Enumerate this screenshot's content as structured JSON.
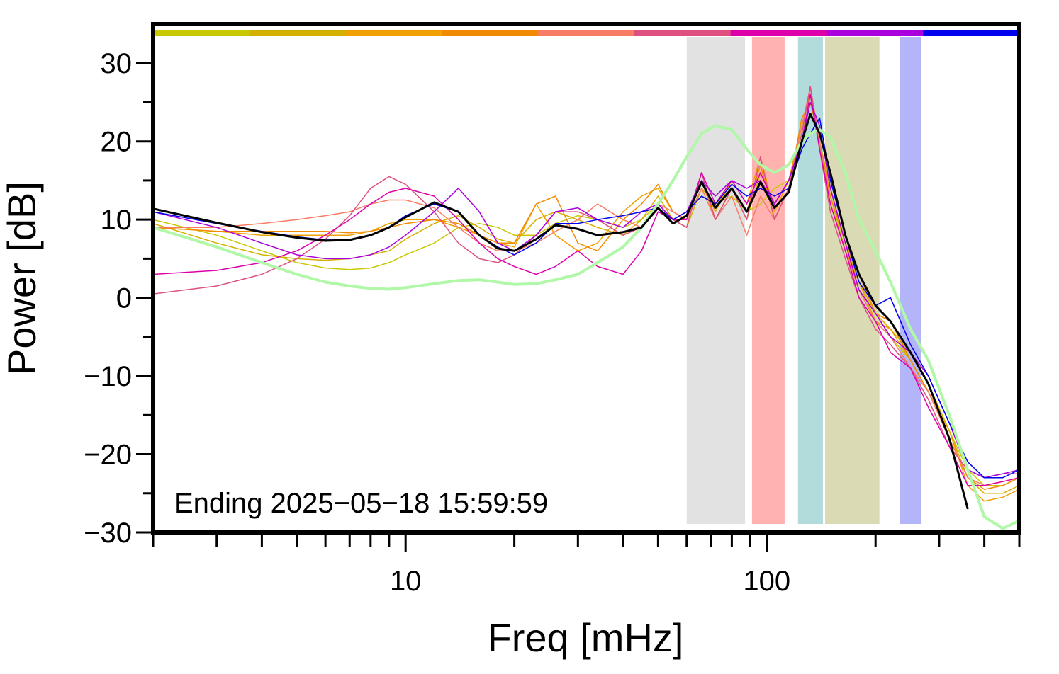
{
  "chart_data": {
    "type": "line",
    "xlabel": "Freq [mHz]",
    "ylabel": "Power [dB]",
    "annotation": "Ending 2025−05−18 15:59:59",
    "log_x": true,
    "xlim": [
      2,
      500
    ],
    "ylim": [
      -30,
      35
    ],
    "xticks": [
      10,
      100
    ],
    "xminor_ticks": [
      2,
      3,
      4,
      5,
      6,
      7,
      8,
      9,
      20,
      30,
      40,
      50,
      60,
      70,
      80,
      90,
      200,
      300,
      400,
      500
    ],
    "yticks": [
      {
        "value": -30,
        "label": "−30"
      },
      {
        "value": -20,
        "label": "−20"
      },
      {
        "value": -10,
        "label": "−10"
      },
      0,
      10,
      20,
      30
    ],
    "yminor_ticks": [
      -25,
      -15,
      -5,
      5,
      15,
      25
    ],
    "colorbar": [
      "#c8c800",
      "#d4b000",
      "#f0a000",
      "#f28a00",
      "#f87c64",
      "#dd5080",
      "#dd00aa",
      "#aa00dd",
      "#0000ee"
    ],
    "bands": [
      {
        "x": [
          60,
          87
        ],
        "color": "#e2e2e2"
      },
      {
        "x": [
          91,
          112
        ],
        "color": "#ffb2b0"
      },
      {
        "x": [
          122,
          143
        ],
        "color": "#b2dcdc"
      },
      {
        "x": [
          145,
          205
        ],
        "color": "#dadab4"
      },
      {
        "x": [
          234,
          267
        ],
        "color": "#b4b4f8"
      }
    ],
    "x": [
      2,
      3,
      4,
      5,
      6,
      7,
      8,
      9,
      10,
      12,
      14,
      16,
      18,
      20,
      23,
      26,
      30,
      34,
      40,
      45,
      50,
      55,
      60,
      66,
      72,
      80,
      88,
      96,
      105,
      115,
      125,
      132,
      140,
      150,
      165,
      180,
      200,
      220,
      250,
      280,
      320,
      360,
      400,
      450,
      500
    ],
    "series": [
      {
        "color": "#c8c800",
        "width": 1.5,
        "values": [
          10,
          8,
          6,
          4.5,
          3.8,
          3.6,
          3.8,
          4.5,
          5.5,
          7,
          9,
          9.5,
          9,
          8,
          8,
          9.5,
          10.5,
          10,
          9,
          10,
          12,
          10,
          11,
          13,
          12,
          13,
          11,
          12,
          14,
          15,
          21,
          25,
          20,
          13,
          6,
          1,
          -2,
          -5,
          -8,
          -12,
          -17,
          -22,
          -24,
          -24,
          -23
        ]
      },
      {
        "color": "#d4b000",
        "width": 1.5,
        "values": [
          9.5,
          7,
          5.5,
          5,
          4.8,
          5,
          5.5,
          6,
          7.5,
          9.5,
          10.5,
          9,
          7.5,
          7,
          10,
          11,
          10,
          9,
          8,
          10,
          13,
          10,
          9,
          14,
          12,
          14,
          10,
          16,
          12,
          15,
          22,
          26,
          20,
          14,
          7,
          2,
          -2,
          -4,
          -7,
          -11,
          -17,
          -23,
          -25,
          -25,
          -24
        ]
      },
      {
        "color": "#f0a000",
        "width": 1.5,
        "values": [
          9,
          8.5,
          8,
          8,
          8,
          8,
          8.5,
          9.5,
          10,
          10,
          9,
          8,
          7,
          6.5,
          12,
          8,
          6,
          7,
          11,
          13,
          14,
          11,
          10,
          15,
          11,
          15,
          12,
          18,
          11,
          15,
          22,
          26,
          19,
          12,
          6,
          2,
          -3,
          -4,
          -8,
          -12,
          -17,
          -24,
          -26,
          -25.5,
          -24.5
        ]
      },
      {
        "color": "#f28a00",
        "width": 1.5,
        "values": [
          9,
          8.5,
          8.5,
          8.5,
          8.5,
          8.3,
          8.5,
          9,
          9.5,
          10,
          9.5,
          8,
          7,
          7,
          12,
          13,
          7,
          6,
          10,
          12,
          14.5,
          11,
          10,
          15,
          10,
          14,
          11,
          17,
          10,
          14,
          23,
          25,
          20,
          13,
          7,
          3,
          -2,
          -3,
          -8,
          -12,
          -18,
          -23,
          -24.5,
          -24,
          -23
        ]
      },
      {
        "color": "#f87c64",
        "width": 1.5,
        "values": [
          9,
          9,
          9.5,
          10,
          10.5,
          11,
          12,
          12.5,
          12.5,
          11.5,
          9,
          7,
          6,
          6,
          7,
          8.5,
          10,
          12,
          10,
          9,
          12,
          11,
          10,
          14,
          10,
          13,
          8,
          13,
          10,
          14,
          22,
          27,
          20,
          12,
          6,
          1,
          -3,
          -5,
          -9,
          -12,
          -18,
          -23,
          -24,
          -23.5,
          -23
        ]
      },
      {
        "color": "#dd5080",
        "width": 1.5,
        "values": [
          0.5,
          1.5,
          3,
          5,
          7.5,
          10.5,
          14,
          15.5,
          14.5,
          11,
          7,
          5,
          4.5,
          5.5,
          8,
          11,
          11,
          10,
          8,
          9,
          12,
          10,
          9,
          16,
          10,
          14,
          10,
          18,
          10,
          14,
          21,
          27,
          19,
          11,
          5,
          0,
          -4,
          -6,
          -9,
          -13,
          -19,
          -22,
          -23,
          -22.5,
          -22.5
        ]
      },
      {
        "color": "#dd00aa",
        "width": 1.5,
        "values": [
          3,
          3.5,
          4.5,
          6,
          8,
          10,
          12,
          13.5,
          14,
          13,
          10,
          7,
          5,
          4,
          3,
          4,
          6,
          4,
          3,
          6,
          11,
          10,
          10,
          16,
          12,
          15,
          12,
          16,
          12,
          15,
          20,
          26,
          19,
          12,
          6,
          0,
          -3,
          -7,
          -9,
          -14,
          -19,
          -24,
          -24,
          -23.5,
          -23
        ]
      },
      {
        "color": "#aa00dd",
        "width": 1.5,
        "values": [
          11,
          9,
          7,
          5.5,
          5,
          5,
          5.5,
          6.5,
          8,
          11,
          14,
          11,
          7,
          6,
          8,
          11,
          11.5,
          10,
          9,
          11,
          12,
          10,
          11,
          15,
          13,
          15,
          14,
          15,
          12,
          15,
          20,
          25,
          22,
          14,
          7,
          1,
          -2,
          -5,
          -7,
          -10,
          -16,
          -22,
          -23,
          -22.5,
          -22
        ]
      },
      {
        "color": "#0000ee",
        "width": 1.5,
        "values": [
          11,
          9.5,
          8.5,
          7.8,
          7.4,
          7.4,
          8,
          9,
          10.5,
          12,
          11,
          8,
          6.5,
          5.5,
          7,
          9.5,
          9.5,
          10,
          10.5,
          11,
          11.5,
          10,
          11,
          13,
          12,
          14.5,
          13,
          14,
          13,
          14,
          19,
          21,
          23,
          15,
          8,
          2,
          -1,
          0,
          -6,
          -10,
          -16,
          -21,
          -23,
          -23,
          -22
        ]
      },
      {
        "color": "#b0f8a8",
        "width": 4,
        "values": [
          9,
          6.5,
          4.5,
          3,
          2,
          1.5,
          1.2,
          1.1,
          1.3,
          1.8,
          2.2,
          2.3,
          2,
          1.7,
          1.8,
          2.3,
          3,
          4.5,
          6.5,
          9,
          12,
          15,
          18,
          21,
          22,
          21.5,
          19,
          17,
          16,
          17,
          20,
          21,
          21.5,
          20.5,
          16,
          10,
          6,
          2,
          -4,
          -8,
          -15,
          -22,
          -28,
          -29.5,
          -28.5
        ]
      },
      {
        "color": "#000000",
        "width": 3,
        "values": [
          11.4,
          9.6,
          8.4,
          7.7,
          7.3,
          7.4,
          8,
          9,
          10.3,
          12.2,
          11,
          8,
          6.3,
          6,
          7.5,
          9.3,
          8.8,
          8,
          8.4,
          9,
          11.5,
          9.5,
          10.5,
          14.8,
          11.5,
          14,
          11,
          14.8,
          11.5,
          13.5,
          20,
          23.5,
          21,
          16,
          8,
          3,
          -1,
          -3,
          -7,
          -11,
          -18,
          -27,
          null,
          null,
          null
        ]
      }
    ]
  }
}
